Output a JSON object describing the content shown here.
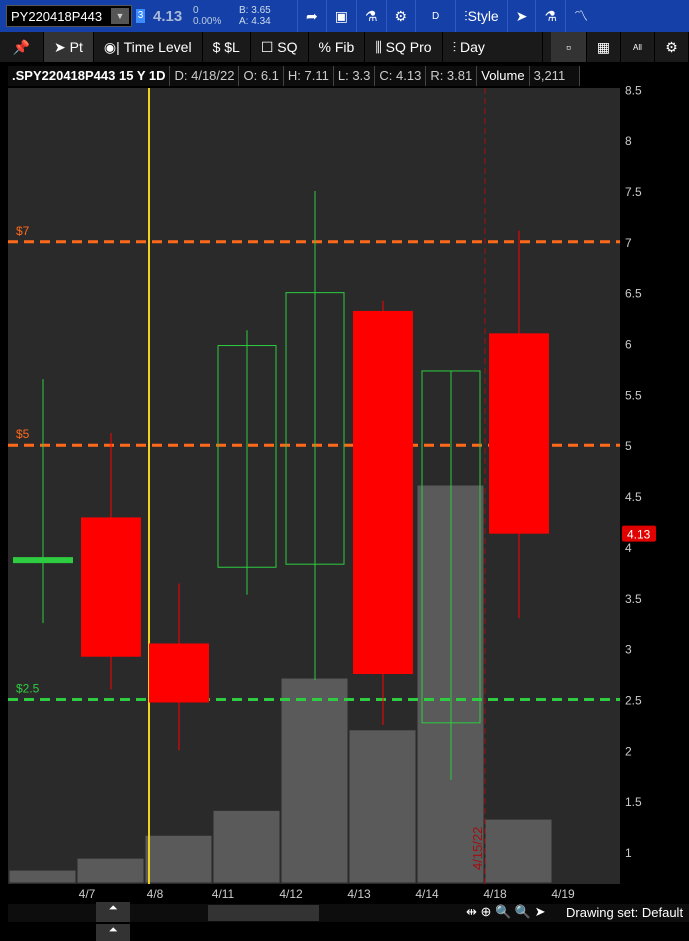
{
  "header": {
    "symbol": "PY220418P443",
    "badge": "3",
    "last": "4.13",
    "change": "0",
    "change_pct": "0.00%",
    "bid": "B: 3.65",
    "ask": "A: 4.34",
    "period": "D",
    "style_label": "Style"
  },
  "toolbar": [
    "Pt",
    "Time Level",
    "$L",
    "SQ",
    "Fib",
    "SQ Pro",
    "Day"
  ],
  "info": {
    "symbol": ".SPY220418P443 15 Y 1D",
    "date": "D: 4/18/22",
    "open": "O: 6.1",
    "high": "H: 7.11",
    "low": "L: 3.3",
    "close": "C: 4.13",
    "range": "R: 3.81",
    "volume_label": "Volume",
    "volume": "3,211"
  },
  "chart_data": {
    "type": "candlestick",
    "ylim": [
      0.7,
      8.5
    ],
    "yticks": [
      "8.5",
      "8",
      "7.5",
      "7",
      "6.5",
      "6",
      "5.5",
      "5",
      "4.5",
      "4",
      "3.5",
      "3",
      "2.5",
      "2",
      "1.5",
      "1"
    ],
    "xticks": [
      "4/7",
      "4/8",
      "4/11",
      "4/12",
      "4/13",
      "4/14",
      "4/18",
      "4/19"
    ],
    "candles": [
      {
        "o": 3.87,
        "h": 5.65,
        "l": 3.25,
        "c": 3.87
      },
      {
        "o": 4.29,
        "h": 5.12,
        "l": 2.6,
        "c": 2.92
      },
      {
        "o": 3.05,
        "h": 3.64,
        "l": 2.0,
        "c": 2.47
      },
      {
        "o": 3.8,
        "h": 6.13,
        "l": 3.53,
        "c": 5.98
      },
      {
        "o": 3.83,
        "h": 7.5,
        "l": 2.69,
        "c": 6.5
      },
      {
        "o": 6.32,
        "h": 6.42,
        "l": 2.25,
        "c": 2.75
      },
      {
        "o": 2.27,
        "h": 5.73,
        "l": 1.71,
        "c": 5.73
      },
      {
        "o": 6.1,
        "h": 7.11,
        "l": 3.3,
        "c": 4.13
      }
    ],
    "volume": [
      650,
      1250,
      2400,
      3650,
      10300,
      7700,
      20000,
      3211
    ],
    "levels": [
      {
        "label": "$7",
        "value": 7,
        "color": "#ff6a1a"
      },
      {
        "label": "$5",
        "value": 5,
        "color": "#ff6a1a"
      },
      {
        "label": "$2.5",
        "value": 2.5,
        "color": "#2ecc40"
      }
    ],
    "vline_date": "4/15/22",
    "current_price": "4.13"
  },
  "footer": {
    "drawing_set": "Drawing set: Default"
  }
}
